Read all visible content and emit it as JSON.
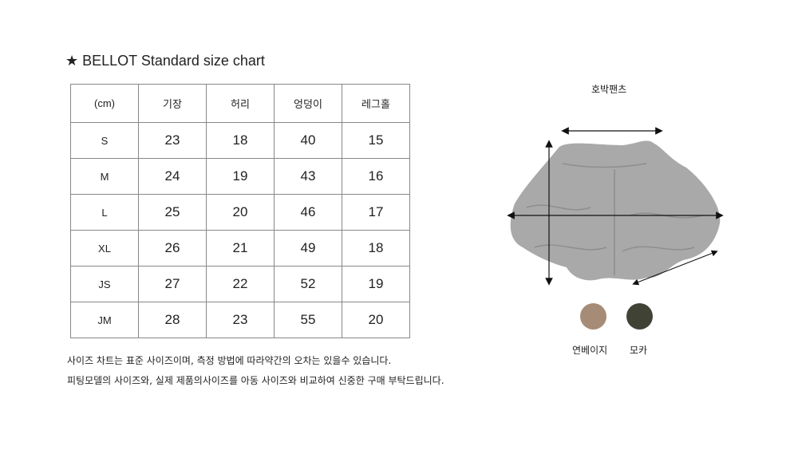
{
  "title": "★ BELLOT Standard size chart",
  "table": {
    "headers": [
      "(cm)",
      "기장",
      "허리",
      "엉덩이",
      "레그홀"
    ],
    "rows": [
      [
        "S",
        "23",
        "18",
        "40",
        "15"
      ],
      [
        "M",
        "24",
        "19",
        "43",
        "16"
      ],
      [
        "L",
        "25",
        "20",
        "46",
        "17"
      ],
      [
        "XL",
        "26",
        "21",
        "49",
        "18"
      ],
      [
        "JS",
        "27",
        "22",
        "52",
        "19"
      ],
      [
        "JM",
        "28",
        "23",
        "55",
        "20"
      ]
    ]
  },
  "notes": [
    "사이즈 차트는 표준 사이즈이며, 측정 방법에 따라약간의 오차는 있을수 있습니다.",
    "피팅모델의 사이즈와, 실제 제품의사이즈를 아동 사이즈와 비교하여 신중한 구매 부탁드립니다."
  ],
  "product": {
    "name": "호박팬츠",
    "image_icon": "quilted-pumpkin-pants"
  },
  "colors": [
    {
      "name": "연베이지",
      "hex": "#a68b76"
    },
    {
      "name": "모카",
      "hex": "#3f4234"
    }
  ]
}
